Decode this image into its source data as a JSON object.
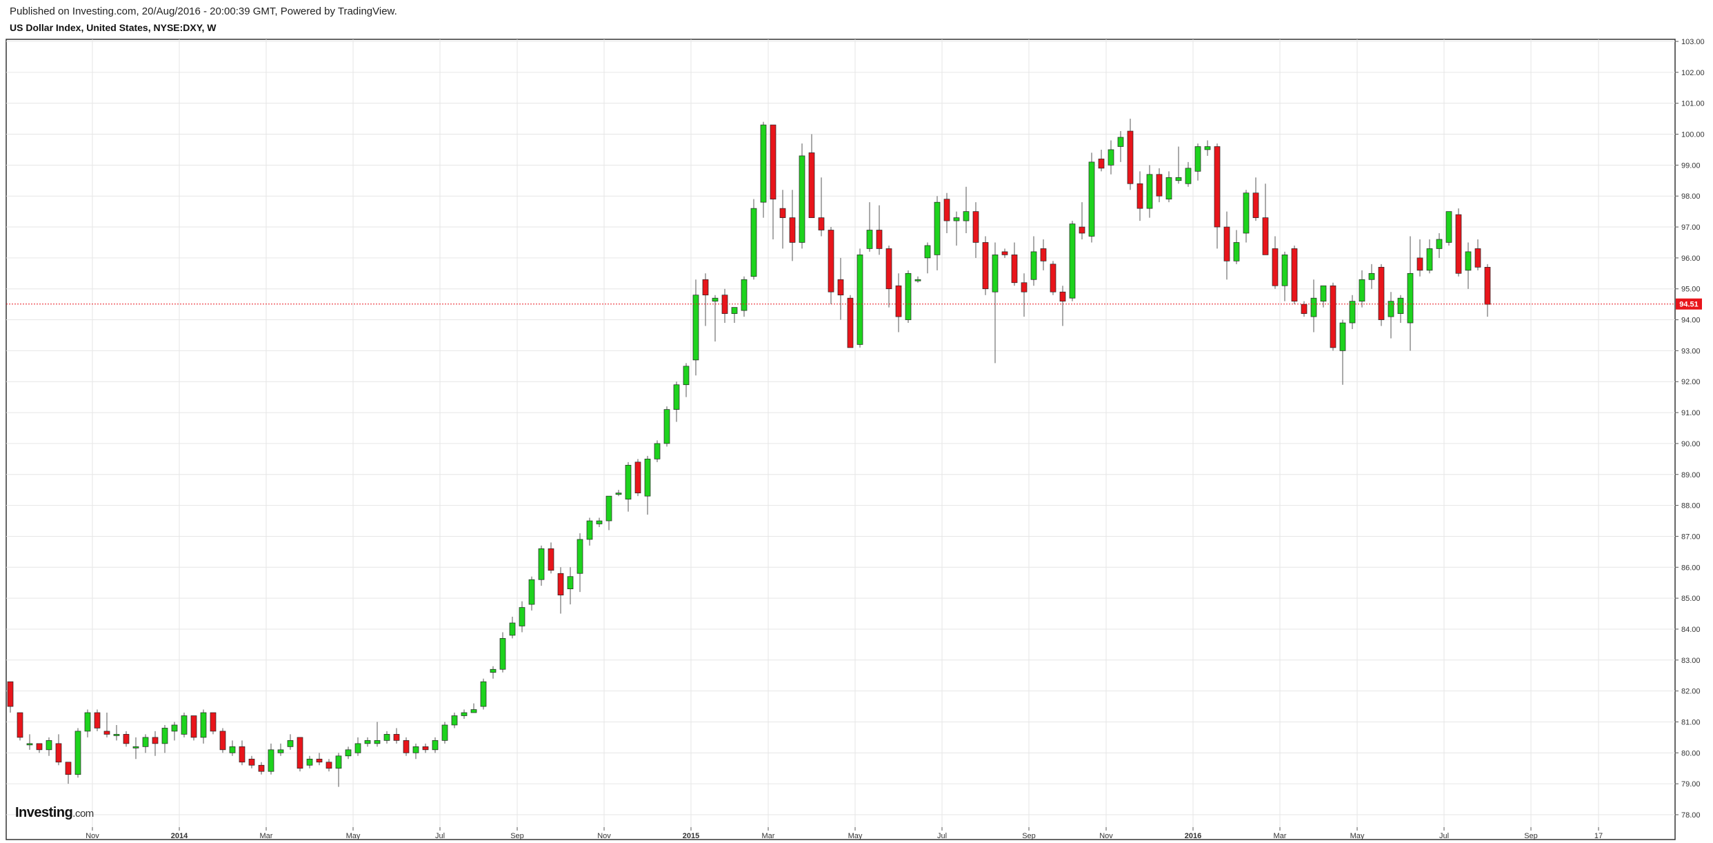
{
  "header": {
    "published": "Published on Investing.com, 20/Aug/2016 - 20:00:39 GMT, Powered by TradingView.",
    "title": "US Dollar Index, United States, NYSE:DXY, W"
  },
  "watermark": {
    "brand": "Investing",
    "suffix": ".com"
  },
  "colors": {
    "up": "#1ed31e",
    "down": "#e8151b",
    "wick": "#555555",
    "grid": "#e6e6e6",
    "price_line": "#e8151b",
    "price_label_bg": "#e8151b"
  },
  "chart_data": {
    "type": "candlestick",
    "title": "US Dollar Index, United States, NYSE:DXY, W",
    "interval": "W",
    "ylim": [
      77.5,
      103
    ],
    "y_ticks": [
      "78.00",
      "79.00",
      "80.00",
      "81.00",
      "82.00",
      "83.00",
      "84.00",
      "85.00",
      "86.00",
      "87.00",
      "88.00",
      "89.00",
      "90.00",
      "91.00",
      "92.00",
      "93.00",
      "94.00",
      "95.00",
      "96.00",
      "97.00",
      "98.00",
      "99.00",
      "100.00",
      "101.00",
      "102.00",
      "103.00"
    ],
    "x_ticks": [
      {
        "label": "Nov",
        "index": 8.5,
        "bold": false
      },
      {
        "label": "2014",
        "index": 17.5,
        "bold": true
      },
      {
        "label": "Mar",
        "index": 26.5,
        "bold": false
      },
      {
        "label": "May",
        "index": 35.5,
        "bold": false
      },
      {
        "label": "Jul",
        "index": 44.5,
        "bold": false
      },
      {
        "label": "Sep",
        "index": 52.5,
        "bold": false
      },
      {
        "label": "Nov",
        "index": 61.5,
        "bold": false
      },
      {
        "label": "2015",
        "index": 70.5,
        "bold": true
      },
      {
        "label": "Mar",
        "index": 78.5,
        "bold": false
      },
      {
        "label": "May",
        "index": 87.5,
        "bold": false
      },
      {
        "label": "Jul",
        "index": 96.5,
        "bold": false
      },
      {
        "label": "Sep",
        "index": 105.5,
        "bold": false
      },
      {
        "label": "Nov",
        "index": 113.5,
        "bold": false
      },
      {
        "label": "2016",
        "index": 122.5,
        "bold": true
      },
      {
        "label": "Mar",
        "index": 131.5,
        "bold": false
      },
      {
        "label": "May",
        "index": 139.5,
        "bold": false
      },
      {
        "label": "Jul",
        "index": 148.5,
        "bold": false
      },
      {
        "label": "Sep",
        "index": 157.5,
        "bold": false
      },
      {
        "label": "17",
        "index": 164.5,
        "bold": false
      }
    ],
    "last_price": 94.51,
    "last_price_label": "94.51",
    "candles": [
      [
        82.3,
        82.3,
        81.3,
        81.5
      ],
      [
        81.3,
        81.3,
        80.4,
        80.5
      ],
      [
        80.3,
        80.6,
        80.1,
        80.3
      ],
      [
        80.3,
        80.3,
        80.0,
        80.1
      ],
      [
        80.1,
        80.5,
        79.9,
        80.4
      ],
      [
        80.3,
        80.6,
        79.6,
        79.7
      ],
      [
        79.7,
        79.7,
        79.0,
        79.3
      ],
      [
        79.3,
        80.8,
        79.2,
        80.7
      ],
      [
        80.7,
        81.4,
        80.5,
        81.3
      ],
      [
        81.3,
        81.4,
        80.7,
        80.8
      ],
      [
        80.7,
        81.3,
        80.5,
        80.6
      ],
      [
        80.6,
        80.9,
        80.4,
        80.6
      ],
      [
        80.6,
        80.7,
        80.2,
        80.3
      ],
      [
        80.2,
        80.5,
        79.8,
        80.2
      ],
      [
        80.2,
        80.6,
        80.0,
        80.5
      ],
      [
        80.5,
        80.7,
        79.9,
        80.3
      ],
      [
        80.3,
        80.9,
        80.0,
        80.8
      ],
      [
        80.7,
        81.0,
        80.4,
        80.9
      ],
      [
        80.6,
        81.3,
        80.5,
        81.2
      ],
      [
        81.2,
        81.2,
        80.4,
        80.5
      ],
      [
        80.5,
        81.4,
        80.3,
        81.3
      ],
      [
        81.3,
        81.3,
        80.6,
        80.7
      ],
      [
        80.7,
        80.8,
        80.0,
        80.1
      ],
      [
        80.0,
        80.4,
        79.9,
        80.2
      ],
      [
        80.2,
        80.4,
        79.6,
        79.7
      ],
      [
        79.8,
        79.9,
        79.5,
        79.6
      ],
      [
        79.6,
        79.7,
        79.3,
        79.4
      ],
      [
        79.4,
        80.3,
        79.3,
        80.1
      ],
      [
        80.0,
        80.3,
        79.9,
        80.1
      ],
      [
        80.2,
        80.6,
        80.1,
        80.4
      ],
      [
        80.5,
        80.5,
        79.4,
        79.5
      ],
      [
        79.6,
        79.9,
        79.5,
        79.8
      ],
      [
        79.8,
        80.0,
        79.6,
        79.7
      ],
      [
        79.7,
        79.8,
        79.4,
        79.5
      ],
      [
        79.5,
        80.0,
        78.9,
        79.9
      ],
      [
        79.9,
        80.2,
        79.8,
        80.1
      ],
      [
        80.0,
        80.5,
        79.9,
        80.3
      ],
      [
        80.3,
        80.5,
        80.2,
        80.4
      ],
      [
        80.3,
        81.0,
        80.2,
        80.4
      ],
      [
        80.4,
        80.7,
        80.3,
        80.6
      ],
      [
        80.6,
        80.8,
        80.3,
        80.4
      ],
      [
        80.4,
        80.5,
        79.9,
        80.0
      ],
      [
        80.0,
        80.3,
        79.8,
        80.2
      ],
      [
        80.2,
        80.3,
        80.0,
        80.1
      ],
      [
        80.1,
        80.5,
        80.0,
        80.4
      ],
      [
        80.4,
        81.0,
        80.3,
        80.9
      ],
      [
        80.9,
        81.3,
        80.8,
        81.2
      ],
      [
        81.2,
        81.4,
        81.1,
        81.3
      ],
      [
        81.3,
        81.6,
        81.3,
        81.4
      ],
      [
        81.5,
        82.4,
        81.4,
        82.3
      ],
      [
        82.6,
        82.8,
        82.4,
        82.7
      ],
      [
        82.7,
        83.9,
        82.6,
        83.7
      ],
      [
        83.8,
        84.4,
        83.7,
        84.2
      ],
      [
        84.1,
        84.9,
        83.9,
        84.7
      ],
      [
        84.8,
        85.7,
        84.6,
        85.6
      ],
      [
        85.6,
        86.7,
        85.4,
        86.6
      ],
      [
        86.6,
        86.8,
        85.8,
        85.9
      ],
      [
        85.8,
        86.0,
        84.5,
        85.1
      ],
      [
        85.3,
        86.0,
        84.8,
        85.7
      ],
      [
        85.8,
        87.1,
        85.2,
        86.9
      ],
      [
        86.9,
        87.6,
        86.7,
        87.5
      ],
      [
        87.4,
        87.6,
        87.3,
        87.5
      ],
      [
        87.5,
        88.2,
        87.2,
        88.3
      ],
      [
        88.4,
        88.5,
        88.3,
        88.4
      ],
      [
        88.2,
        89.4,
        87.8,
        89.3
      ],
      [
        89.4,
        89.5,
        88.3,
        88.4
      ],
      [
        88.3,
        89.6,
        87.7,
        89.5
      ],
      [
        89.5,
        90.1,
        89.4,
        90.0
      ],
      [
        90.0,
        91.2,
        89.9,
        91.1
      ],
      [
        91.1,
        92.0,
        90.7,
        91.9
      ],
      [
        91.9,
        92.6,
        91.5,
        92.5
      ],
      [
        92.7,
        95.3,
        92.2,
        94.8
      ],
      [
        95.3,
        95.5,
        93.8,
        94.8
      ],
      [
        94.6,
        94.8,
        93.3,
        94.7
      ],
      [
        94.8,
        95.0,
        93.9,
        94.2
      ],
      [
        94.2,
        94.4,
        93.9,
        94.4
      ],
      [
        94.3,
        95.4,
        94.1,
        95.3
      ],
      [
        95.4,
        97.9,
        95.3,
        97.6
      ],
      [
        97.8,
        100.4,
        97.3,
        100.3
      ],
      [
        100.3,
        100.3,
        96.6,
        97.9
      ],
      [
        97.6,
        98.2,
        96.3,
        97.3
      ],
      [
        97.3,
        98.2,
        95.9,
        96.5
      ],
      [
        96.5,
        99.7,
        96.3,
        99.3
      ],
      [
        99.4,
        100.0,
        97.3,
        97.3
      ],
      [
        97.3,
        98.6,
        96.7,
        96.9
      ],
      [
        96.9,
        97.0,
        94.5,
        94.9
      ],
      [
        95.3,
        96.0,
        94.0,
        94.8
      ],
      [
        94.7,
        94.8,
        93.1,
        93.1
      ],
      [
        93.2,
        96.3,
        93.1,
        96.1
      ],
      [
        96.3,
        97.8,
        96.2,
        96.9
      ],
      [
        96.9,
        97.7,
        96.1,
        96.3
      ],
      [
        96.3,
        96.4,
        94.4,
        95.0
      ],
      [
        95.1,
        95.5,
        93.6,
        94.1
      ],
      [
        94.0,
        95.6,
        93.9,
        95.5
      ],
      [
        95.3,
        95.4,
        95.2,
        95.3
      ],
      [
        96.0,
        96.5,
        95.5,
        96.4
      ],
      [
        96.1,
        98.0,
        95.6,
        97.8
      ],
      [
        97.9,
        98.1,
        96.8,
        97.2
      ],
      [
        97.2,
        97.5,
        96.4,
        97.3
      ],
      [
        97.2,
        98.3,
        96.8,
        97.5
      ],
      [
        97.5,
        97.8,
        96.0,
        96.5
      ],
      [
        96.5,
        96.7,
        94.8,
        95.0
      ],
      [
        94.9,
        96.5,
        92.6,
        96.1
      ],
      [
        96.2,
        96.3,
        96.0,
        96.1
      ],
      [
        96.1,
        96.5,
        95.1,
        95.2
      ],
      [
        95.2,
        95.5,
        94.1,
        94.9
      ],
      [
        95.3,
        96.7,
        95.1,
        96.2
      ],
      [
        96.3,
        96.6,
        95.6,
        95.9
      ],
      [
        95.8,
        95.9,
        94.8,
        94.9
      ],
      [
        94.9,
        95.1,
        93.8,
        94.6
      ],
      [
        94.7,
        97.2,
        94.6,
        97.1
      ],
      [
        97.0,
        97.8,
        96.6,
        96.8
      ],
      [
        96.7,
        99.4,
        96.5,
        99.1
      ],
      [
        99.2,
        99.5,
        98.8,
        98.9
      ],
      [
        99.0,
        99.8,
        98.7,
        99.5
      ],
      [
        99.6,
        100.1,
        99.1,
        99.9
      ],
      [
        100.1,
        100.5,
        98.2,
        98.4
      ],
      [
        98.4,
        98.8,
        97.2,
        97.6
      ],
      [
        97.6,
        99.0,
        97.3,
        98.7
      ],
      [
        98.7,
        98.9,
        97.8,
        98.0
      ],
      [
        97.9,
        98.8,
        97.8,
        98.6
      ],
      [
        98.5,
        99.6,
        98.4,
        98.6
      ],
      [
        98.4,
        99.1,
        98.3,
        98.9
      ],
      [
        98.8,
        99.7,
        98.5,
        99.6
      ],
      [
        99.5,
        99.8,
        99.3,
        99.6
      ],
      [
        99.6,
        99.7,
        96.3,
        97.0
      ],
      [
        97.0,
        97.5,
        95.3,
        95.9
      ],
      [
        95.9,
        96.9,
        95.8,
        96.5
      ],
      [
        96.8,
        98.2,
        96.5,
        98.1
      ],
      [
        98.1,
        98.6,
        97.2,
        97.3
      ],
      [
        97.3,
        98.4,
        96.2,
        96.1
      ],
      [
        96.3,
        96.7,
        95.0,
        95.1
      ],
      [
        95.1,
        96.2,
        94.6,
        96.1
      ],
      [
        96.3,
        96.4,
        94.5,
        94.6
      ],
      [
        94.5,
        94.6,
        94.1,
        94.2
      ],
      [
        94.1,
        95.3,
        93.6,
        94.7
      ],
      [
        94.6,
        95.0,
        94.4,
        95.1
      ],
      [
        95.1,
        95.2,
        93.0,
        93.1
      ],
      [
        93.0,
        94.0,
        91.9,
        93.9
      ],
      [
        93.9,
        94.8,
        93.7,
        94.6
      ],
      [
        94.6,
        95.6,
        94.4,
        95.3
      ],
      [
        95.3,
        95.8,
        95.0,
        95.5
      ],
      [
        95.7,
        95.8,
        93.8,
        94.0
      ],
      [
        94.1,
        94.9,
        93.4,
        94.6
      ],
      [
        94.2,
        94.8,
        93.9,
        94.7
      ],
      [
        93.9,
        96.7,
        93.0,
        95.5
      ],
      [
        96.0,
        96.6,
        95.4,
        95.6
      ],
      [
        95.6,
        96.6,
        95.5,
        96.3
      ],
      [
        96.3,
        96.8,
        96.0,
        96.6
      ],
      [
        96.5,
        97.5,
        96.4,
        97.5
      ],
      [
        97.4,
        97.6,
        95.4,
        95.5
      ],
      [
        95.6,
        96.5,
        95.0,
        96.2
      ],
      [
        96.3,
        96.6,
        95.6,
        95.7
      ],
      [
        95.7,
        95.8,
        94.1,
        94.5
      ]
    ]
  }
}
